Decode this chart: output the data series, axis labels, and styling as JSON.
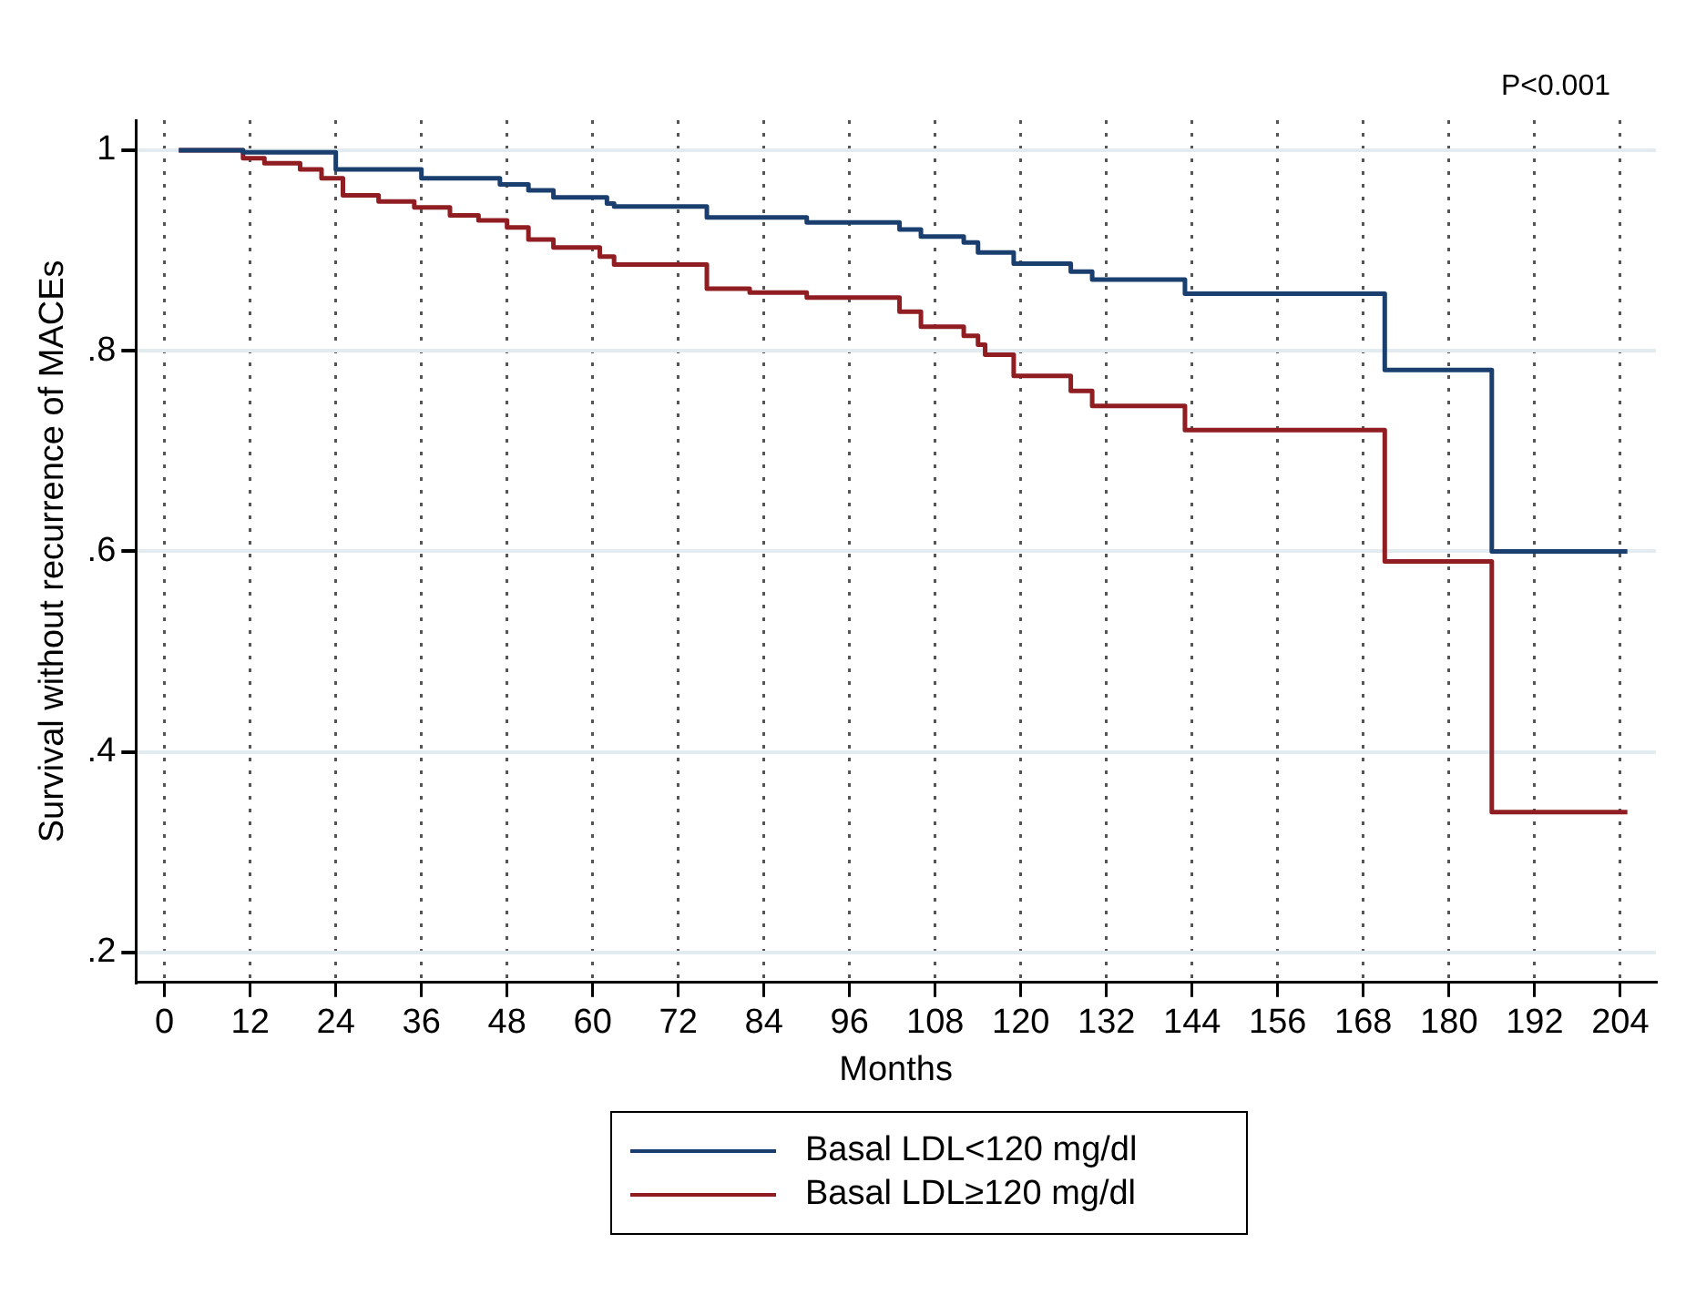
{
  "chart_data": {
    "type": "step",
    "xlabel": "Months",
    "ylabel": "Survival without recurrence of MACEs",
    "annotations": [
      "P<0.001"
    ],
    "xlim": [
      -4,
      209
    ],
    "xticks": [
      0,
      12,
      24,
      36,
      48,
      60,
      72,
      84,
      96,
      108,
      120,
      132,
      144,
      156,
      168,
      180,
      192,
      204
    ],
    "ylim": [
      0.17,
      1.03
    ],
    "yticks": [
      {
        "value": 0.2,
        "label": ".2"
      },
      {
        "value": 0.4,
        "label": ".4"
      },
      {
        "value": 0.6,
        "label": ".6"
      },
      {
        "value": 0.8,
        "label": ".8"
      },
      {
        "value": 1,
        "label": "1"
      }
    ],
    "grid": true,
    "legend": "bottom",
    "marker": "none",
    "series": [
      {
        "name": "Basal LDL<120 mg/dl",
        "color": "#1a3f6f",
        "x": [
          2,
          11,
          24,
          36,
          47,
          51,
          54.5,
          62,
          63,
          76,
          90,
          103,
          106,
          112,
          114,
          119,
          127,
          130,
          143,
          171,
          186,
          205
        ],
        "values": [
          1,
          0.998,
          0.981,
          0.972,
          0.966,
          0.96,
          0.953,
          0.947,
          0.944,
          0.933,
          0.928,
          0.921,
          0.914,
          0.908,
          0.898,
          0.887,
          0.879,
          0.871,
          0.857,
          0.781,
          0.6,
          0.6
        ]
      },
      {
        "name": "Basal LDL≥120 mg/dl",
        "color": "#8f1d21",
        "x": [
          2,
          11,
          14,
          19,
          22,
          25,
          30,
          35,
          40,
          44,
          48,
          51,
          54.5,
          61,
          63,
          76,
          82,
          90,
          103,
          106,
          112,
          114,
          115,
          119,
          127,
          130,
          143,
          171,
          186,
          205
        ],
        "values": [
          1,
          0.992,
          0.987,
          0.981,
          0.972,
          0.955,
          0.949,
          0.943,
          0.935,
          0.93,
          0.923,
          0.911,
          0.903,
          0.894,
          0.886,
          0.862,
          0.858,
          0.853,
          0.839,
          0.824,
          0.815,
          0.806,
          0.796,
          0.775,
          0.76,
          0.745,
          0.721,
          0.59,
          0.34,
          0.34
        ]
      }
    ]
  }
}
